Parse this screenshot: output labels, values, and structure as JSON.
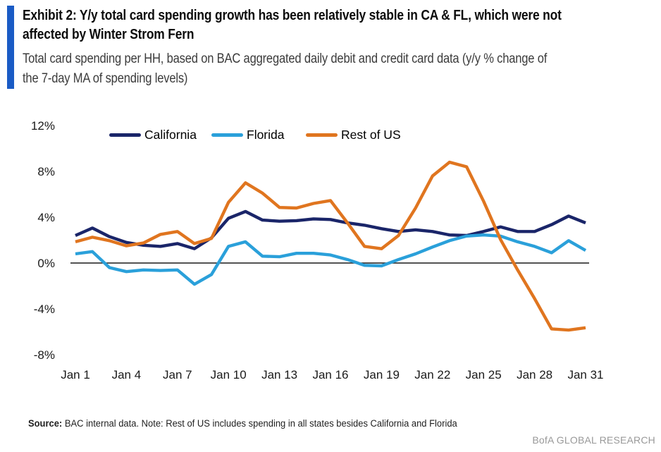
{
  "header": {
    "accent_color": "#1a5bc5",
    "title_lines": [
      "Exhibit 2: Y/y total card spending growth has been relatively stable in CA & FL, which were not",
      "affected by Winter Strom Fern"
    ],
    "subtitle_lines": [
      "Total card spending per HH, based on BAC aggregated daily debit and credit card data (y/y % change of",
      "the 7-day MA of spending levels)"
    ]
  },
  "chart_data": {
    "type": "line",
    "title": "Y/y total card spending growth per HH (y/y % change of 7-day MA)",
    "xlabel": "",
    "ylabel": "",
    "ylim": [
      -8,
      12
    ],
    "grid": false,
    "zero_line": true,
    "legend_position": "top-inside",
    "y_tick_labels": [
      "12%",
      "8%",
      "4%",
      "0%",
      "-4%",
      "-8%"
    ],
    "y_tick_values": [
      12,
      8,
      4,
      0,
      -4,
      -8
    ],
    "x_tick_labels": [
      "Jan 1",
      "Jan 4",
      "Jan 7",
      "Jan 10",
      "Jan 13",
      "Jan 16",
      "Jan 19",
      "Jan 22",
      "Jan 25",
      "Jan 28",
      "Jan 31"
    ],
    "x_tick_day_index": [
      0,
      3,
      6,
      9,
      12,
      15,
      18,
      21,
      24,
      27,
      30
    ],
    "days": [
      1,
      2,
      3,
      4,
      5,
      6,
      7,
      8,
      9,
      10,
      11,
      12,
      13,
      14,
      15,
      16,
      17,
      18,
      19,
      20,
      21,
      22,
      23,
      24,
      25,
      26,
      27,
      28,
      29,
      30,
      31
    ],
    "series": [
      {
        "name": "California",
        "color": "#1a2569",
        "values": [
          2.4,
          3.05,
          2.3,
          1.8,
          1.55,
          1.45,
          1.7,
          1.25,
          2.2,
          3.9,
          4.5,
          3.75,
          3.65,
          3.7,
          3.85,
          3.8,
          3.5,
          3.3,
          3.0,
          2.75,
          2.9,
          2.75,
          2.45,
          2.4,
          2.75,
          3.15,
          2.75,
          2.75,
          3.35,
          4.1,
          3.5
        ]
      },
      {
        "name": "Florida",
        "color": "#2aa0da",
        "values": [
          0.8,
          1.0,
          -0.4,
          -0.75,
          -0.6,
          -0.65,
          -0.6,
          -1.85,
          -1.0,
          1.45,
          1.85,
          0.6,
          0.55,
          0.85,
          0.85,
          0.7,
          0.3,
          -0.2,
          -0.25,
          0.3,
          0.8,
          1.4,
          1.95,
          2.35,
          2.45,
          2.35,
          1.85,
          1.45,
          0.9,
          1.95,
          1.1
        ]
      },
      {
        "name": "Rest of US",
        "color": "#e0751f",
        "values": [
          1.85,
          2.25,
          1.95,
          1.5,
          1.75,
          2.5,
          2.75,
          1.7,
          2.15,
          5.3,
          7.0,
          6.1,
          4.85,
          4.8,
          5.2,
          5.45,
          3.5,
          1.45,
          1.25,
          2.4,
          4.8,
          7.6,
          8.8,
          8.4,
          5.4,
          2.05,
          -0.6,
          -3.1,
          -5.75,
          -5.85,
          -5.65
        ]
      }
    ]
  },
  "footer": {
    "source_label": "Source:",
    "source_note": "BAC internal data. Note: Rest of US includes spending in all states besides California and Florida",
    "brand": "BofA GLOBAL RESEARCH"
  }
}
